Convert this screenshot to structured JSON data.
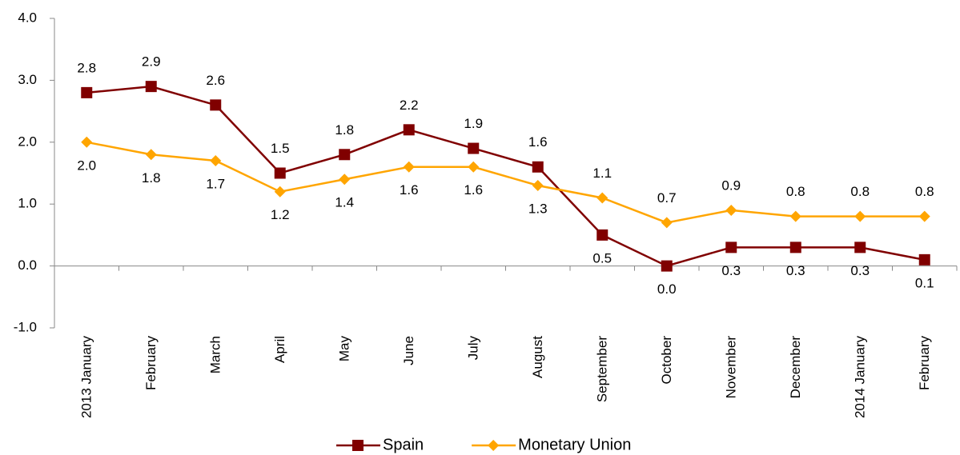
{
  "chart_data": {
    "type": "line",
    "categories": [
      "2013 January",
      "February",
      "March",
      "April",
      "May",
      "June",
      "July",
      "August",
      "September",
      "October",
      "November",
      "December",
      "2014 January",
      "February"
    ],
    "series": [
      {
        "name": "Spain",
        "color": "#800000",
        "marker": "square",
        "values": [
          2.8,
          2.9,
          2.6,
          1.5,
          1.8,
          2.2,
          1.9,
          1.6,
          0.5,
          0.0,
          0.3,
          0.3,
          0.3,
          0.1
        ],
        "value_labels": [
          "2.8",
          "2.9",
          "2.6",
          "1.5",
          "1.8",
          "2.2",
          "1.9",
          "1.6",
          "0.5",
          "0.0",
          "0.3",
          "0.3",
          "0.3",
          "0.1"
        ]
      },
      {
        "name": "Monetary Union",
        "color": "#ffa500",
        "marker": "diamond",
        "values": [
          2.0,
          1.8,
          1.7,
          1.2,
          1.4,
          1.6,
          1.6,
          1.3,
          1.1,
          0.7,
          0.9,
          0.8,
          0.8,
          0.8
        ],
        "value_labels": [
          "2.0",
          "1.8",
          "1.7",
          "1.2",
          "1.4",
          "1.6",
          "1.6",
          "1.3",
          "1.1",
          "0.7",
          "0.9",
          "0.8",
          "0.8",
          "0.8"
        ]
      }
    ],
    "ylim": [
      -1,
      4
    ],
    "yticks": [
      {
        "value": -1,
        "label": "-1.0"
      },
      {
        "value": 0,
        "label": "0.0"
      },
      {
        "value": 1,
        "label": "1.0"
      },
      {
        "value": 2,
        "label": "2.0"
      },
      {
        "value": 3,
        "label": "3.0"
      },
      {
        "value": 4,
        "label": "4.0"
      }
    ],
    "grid": false,
    "legend": "bottom"
  }
}
